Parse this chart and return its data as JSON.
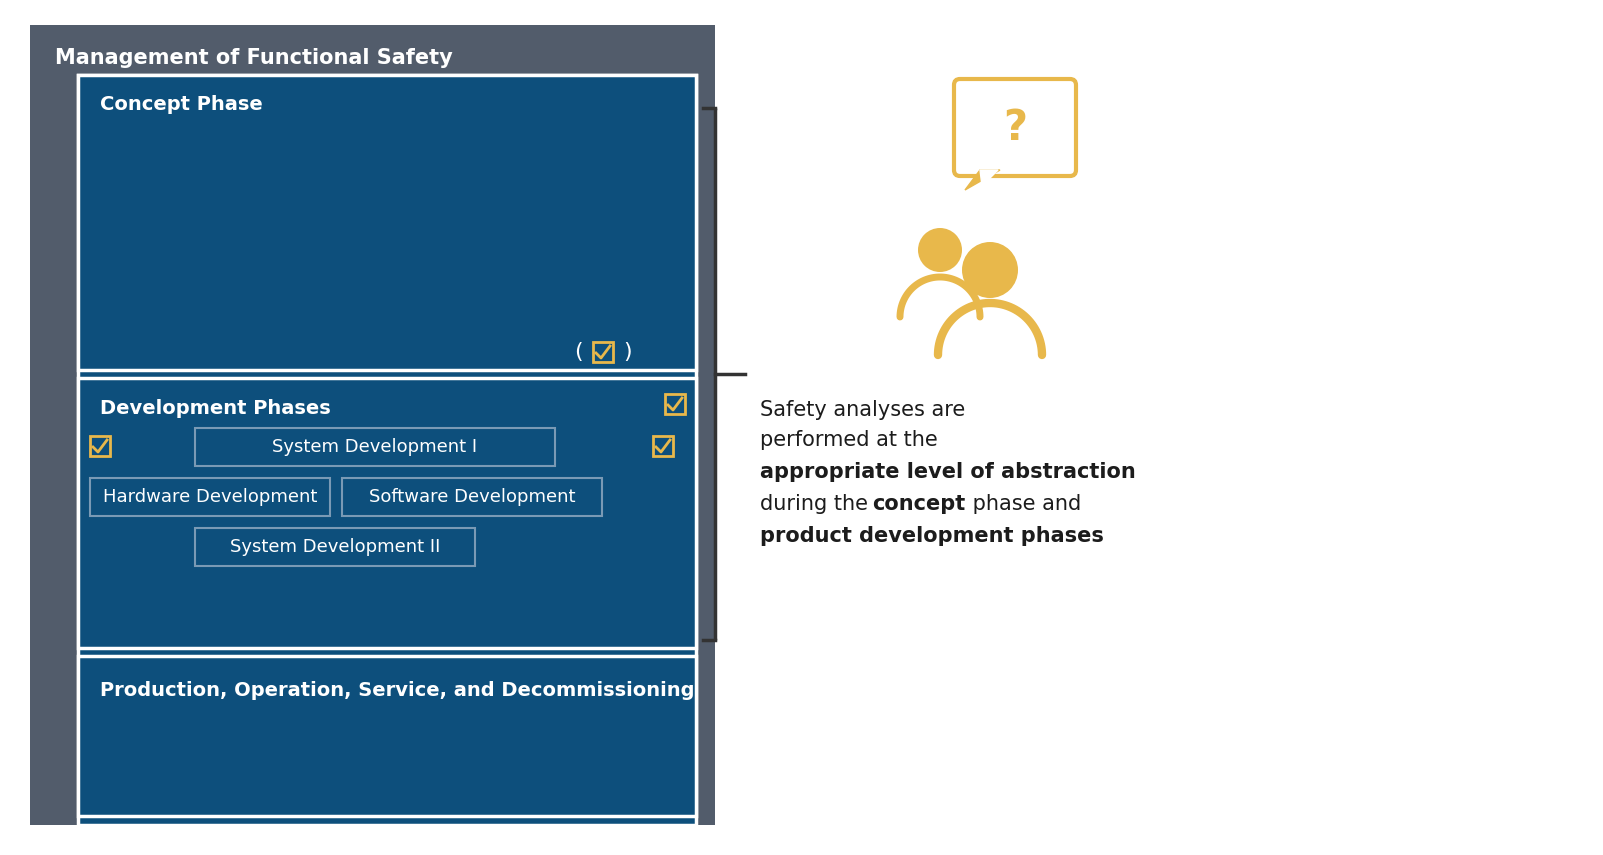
{
  "bg_color": "#ffffff",
  "outer_gray": "#525c6b",
  "dark_blue": "#0d4f7c",
  "white": "#ffffff",
  "checkbox_color": "#e8b84b",
  "dark_text": "#1c1c1c",
  "icon_color": "#e8b84b",
  "outer_box_label": "Management of Functional Safety",
  "concept_label": "Concept Phase",
  "dev_label": "Development Phases",
  "prod_label": "Production, Operation, Service, and Decommissioning",
  "sys_dev_1": "System Development I",
  "hw_dev": "Hardware Development",
  "sw_dev": "Software Development",
  "sys_dev_2": "System Development II",
  "fig_w": 16.03,
  "fig_h": 8.55,
  "dpi": 100
}
